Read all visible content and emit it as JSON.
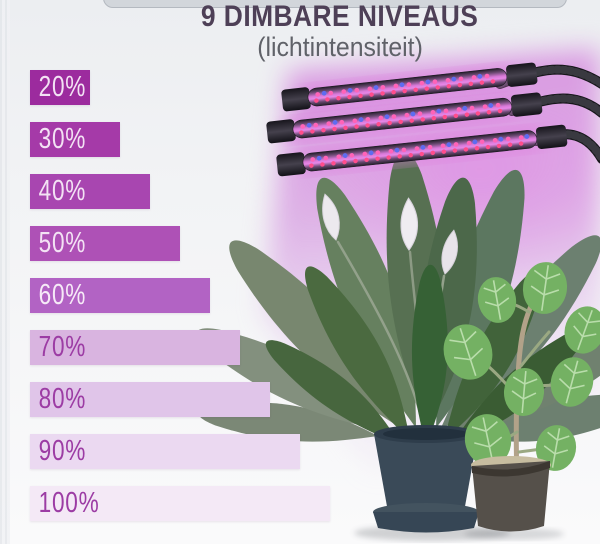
{
  "header": {
    "title": "9 DIMBARE NIVEAUS",
    "subtitle": "(lichtintensiteit)"
  },
  "chart_data": {
    "type": "bar",
    "orientation": "horizontal",
    "title": "9 DIMBARE NIVEAUS",
    "subtitle": "(lichtintensiteit)",
    "unit": "%",
    "levels_count": 9,
    "categories": [
      "20%",
      "30%",
      "40%",
      "50%",
      "60%",
      "70%",
      "80%",
      "90%",
      "100%"
    ],
    "values": [
      20,
      30,
      40,
      50,
      60,
      70,
      80,
      90,
      100
    ],
    "levels": [
      {
        "label": "20%",
        "value": 20,
        "bar_color": "#9c2b9e",
        "label_color": "#f3e2f4"
      },
      {
        "label": "30%",
        "value": 30,
        "bar_color": "#a53aa8",
        "label_color": "#f3e2f4"
      },
      {
        "label": "40%",
        "value": 40,
        "bar_color": "#a846b0",
        "label_color": "#f3e2f4"
      },
      {
        "label": "50%",
        "value": 50,
        "bar_color": "#ae51b6",
        "label_color": "#f3e2f4"
      },
      {
        "label": "60%",
        "value": 60,
        "bar_color": "#b263c4",
        "label_color": "#f6eaf7"
      },
      {
        "label": "70%",
        "value": 70,
        "bar_color": "#d9b4e0",
        "label_color": "#9c3ca4"
      },
      {
        "label": "80%",
        "value": 80,
        "bar_color": "#e0c5e9",
        "label_color": "#9c3ca4"
      },
      {
        "label": "90%",
        "value": 90,
        "bar_color": "#ebd9f1",
        "label_color": "#9c3ca4"
      },
      {
        "label": "100%",
        "value": 100,
        "bar_color": "#f4e9f6",
        "label_color": "#9c3ca4"
      }
    ]
  },
  "illustration": {
    "lamp": {
      "tube_count": 3,
      "led_pink": "#ff63b8",
      "led_blue": "#5f6cf0",
      "glow_color": "#d78ae0"
    },
    "plants": {
      "left_pot_color": "#3a4a58",
      "right_pot_color": "#55504a",
      "lily_flower_color": "#ece9ee",
      "ficus_leaf_color": "#74b163"
    }
  }
}
